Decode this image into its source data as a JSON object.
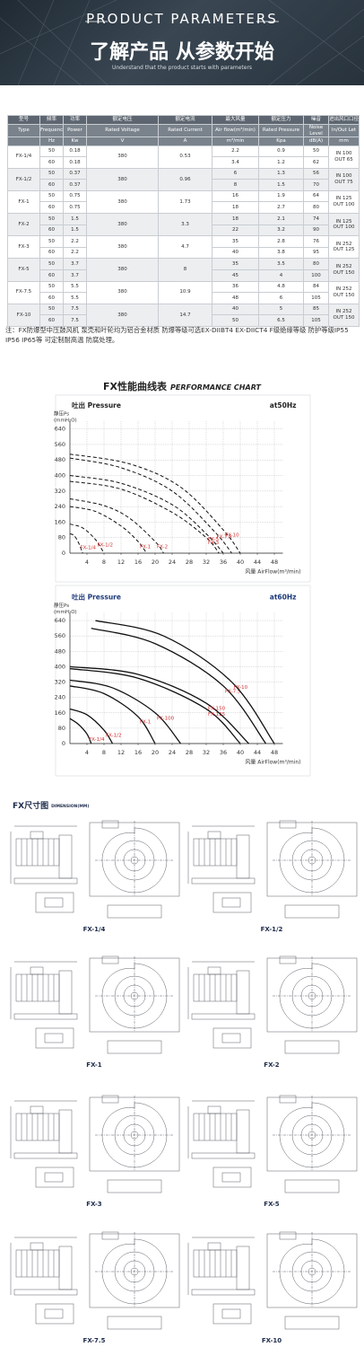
{
  "header": {
    "title": "PRODUCT PARAMETERS",
    "heading": "了解产品 从参数开始",
    "subtitle": "Understand that the product starts with parameters"
  },
  "table": {
    "header_cn": [
      "型号",
      "频率",
      "功率",
      "额定电压",
      "额定电流",
      "最大风量",
      "额定压力",
      "噪音",
      "进出风口口径"
    ],
    "header_en": [
      "Type",
      "Frequency",
      "Power",
      "Rated Voltage",
      "Rated Current",
      "Air flow(m³/min)",
      "Rated Pressure",
      "Noise Level",
      "In/Out Let"
    ],
    "units": [
      "Hz",
      "Kw",
      "V",
      "A",
      "m³/min",
      "Kpa",
      "dB(A)",
      "mm"
    ],
    "models": [
      {
        "type": "FX-1/4",
        "voltage": 380,
        "current": 0.53,
        "inlet": "IN 100",
        "outlet": "OUT 65",
        "rows": [
          [
            50,
            0.18,
            2.2,
            0.9,
            50
          ],
          [
            60,
            0.18,
            3.4,
            1.2,
            62
          ]
        ]
      },
      {
        "type": "FX-1/2",
        "voltage": 380,
        "current": 0.96,
        "inlet": "IN 100",
        "outlet": "OUT 75",
        "rows": [
          [
            50,
            0.37,
            6,
            1.3,
            56
          ],
          [
            60,
            0.37,
            8,
            1.5,
            70
          ]
        ]
      },
      {
        "type": "FX-1",
        "voltage": 380,
        "current": 1.73,
        "inlet": "IN 125",
        "outlet": "OUT 100",
        "rows": [
          [
            50,
            0.75,
            16,
            1.9,
            64
          ],
          [
            60,
            0.75,
            18,
            2.7,
            80
          ]
        ]
      },
      {
        "type": "FX-2",
        "voltage": 380,
        "current": 3.3,
        "inlet": "IN 125",
        "outlet": "OUT 100",
        "rows": [
          [
            50,
            1.5,
            18,
            2.1,
            74
          ],
          [
            60,
            1.5,
            22,
            3.2,
            90
          ]
        ]
      },
      {
        "type": "FX-3",
        "voltage": 380,
        "current": 4.7,
        "inlet": "IN 252",
        "outlet": "OUT 125",
        "rows": [
          [
            50,
            2.2,
            35,
            2.8,
            76
          ],
          [
            60,
            2.2,
            40,
            3.8,
            95
          ]
        ]
      },
      {
        "type": "FX-5",
        "voltage": 380,
        "current": 8,
        "inlet": "IN 252",
        "outlet": "OUT 150",
        "rows": [
          [
            50,
            3.7,
            35,
            3.5,
            80
          ],
          [
            60,
            3.7,
            45,
            4,
            100
          ]
        ]
      },
      {
        "type": "FX-7.5",
        "voltage": 380,
        "current": 10.9,
        "inlet": "IN 252",
        "outlet": "OUT 150",
        "rows": [
          [
            50,
            5.5,
            36,
            4.8,
            84
          ],
          [
            60,
            5.5,
            48,
            6,
            105
          ]
        ]
      },
      {
        "type": "FX-10",
        "voltage": 380,
        "current": 14.7,
        "inlet": "IN 252",
        "outlet": "OUT 150",
        "rows": [
          [
            50,
            7.5,
            40,
            5,
            85
          ],
          [
            60,
            7.5,
            50,
            6.5,
            105
          ]
        ]
      }
    ]
  },
  "note": "注：FX防爆型中压鼓风机 泵壳和叶轮均为铝合金材质 防爆等级可选EX-DIIBT4 EX-DIICT4 F级绝缘等级 防护等级IP55 IP56 IP65等 可定制耐高温 防腐处理。",
  "chart_section": {
    "title_cn": "FX性能曲线表",
    "title_en": "PERFORMANCE CHART"
  },
  "chart_data": [
    {
      "type": "line",
      "subtitle": "吐出 Pressure",
      "annotation": "at50Hz",
      "ylabel": "静压Ps",
      "yunit": "(mmH₂O)",
      "xlabel": "风量 AirFlow(m³/min)",
      "xlim": [
        0,
        50
      ],
      "ylim": [
        0,
        680
      ],
      "xticks": [
        4,
        8,
        12,
        16,
        20,
        24,
        28,
        32,
        36,
        40,
        44,
        48
      ],
      "yticks": [
        0,
        80,
        160,
        240,
        320,
        400,
        480,
        560,
        640
      ],
      "grid": true,
      "dashed": true,
      "label_color": "#d32f2f",
      "series": [
        {
          "name": "FX-1/4",
          "color": "#111111",
          "x": [
            0,
            1,
            2,
            3
          ],
          "values": [
            100,
            90,
            55,
            0
          ]
        },
        {
          "name": "FX-1/2",
          "color": "#111111",
          "x": [
            0,
            3,
            6,
            8
          ],
          "values": [
            150,
            130,
            70,
            0
          ]
        },
        {
          "name": "FX-1",
          "color": "#111111",
          "x": [
            0,
            6,
            12,
            16,
            18
          ],
          "values": [
            240,
            215,
            140,
            60,
            0
          ]
        },
        {
          "name": "FX-2",
          "color": "#111111",
          "x": [
            0,
            8,
            14,
            20,
            22
          ],
          "values": [
            280,
            245,
            180,
            60,
            0
          ]
        },
        {
          "name": "FX-3",
          "color": "#111111",
          "x": [
            0,
            12,
            24,
            32,
            35
          ],
          "values": [
            370,
            330,
            210,
            80,
            0
          ]
        },
        {
          "name": "FX-5",
          "color": "#111111",
          "x": [
            0,
            12,
            24,
            32,
            36
          ],
          "values": [
            400,
            360,
            250,
            100,
            0
          ]
        },
        {
          "name": "FX-7.5",
          "color": "#111111",
          "x": [
            0,
            12,
            24,
            34,
            38
          ],
          "values": [
            490,
            440,
            320,
            110,
            0
          ]
        },
        {
          "name": "FX-10",
          "color": "#111111",
          "x": [
            0,
            14,
            26,
            36,
            40
          ],
          "values": [
            510,
            460,
            340,
            120,
            0
          ]
        }
      ]
    },
    {
      "type": "line",
      "subtitle": "吐出 Pressure",
      "annotation": "at60Hz",
      "ylabel": "静压Ps",
      "yunit": "(mmH₂O)",
      "xlabel": "风量 AirFlow(m³/min)",
      "xlim": [
        0,
        50
      ],
      "ylim": [
        0,
        680
      ],
      "xticks": [
        4,
        8,
        12,
        16,
        20,
        24,
        28,
        32,
        36,
        40,
        44,
        48
      ],
      "yticks": [
        0,
        80,
        160,
        240,
        320,
        400,
        480,
        560,
        640
      ],
      "grid": true,
      "dashed": false,
      "label_color": "#d32f2f",
      "series": [
        {
          "name": "FX-1/4",
          "color": "#111111",
          "x": [
            0,
            2,
            4,
            5
          ],
          "values": [
            130,
            100,
            50,
            0
          ]
        },
        {
          "name": "FX-1/2",
          "color": "#111111",
          "x": [
            0,
            4,
            8,
            10
          ],
          "values": [
            180,
            150,
            70,
            0
          ]
        },
        {
          "name": "FX-1",
          "color": "#111111",
          "x": [
            0,
            8,
            16,
            20
          ],
          "values": [
            300,
            260,
            140,
            0
          ]
        },
        {
          "name": "FX-100",
          "color": "#111111",
          "x": [
            0,
            10,
            20,
            26
          ],
          "values": [
            330,
            290,
            160,
            0
          ]
        },
        {
          "name": "FX-125",
          "color": "#111111",
          "x": [
            0,
            16,
            32,
            40
          ],
          "values": [
            390,
            340,
            180,
            0
          ]
        },
        {
          "name": "FX-150",
          "color": "#111111",
          "x": [
            0,
            16,
            32,
            42
          ],
          "values": [
            400,
            360,
            210,
            0
          ]
        },
        {
          "name": "FX-7.5",
          "color": "#111111",
          "x": [
            5,
            20,
            36,
            46
          ],
          "values": [
            600,
            520,
            300,
            0
          ]
        },
        {
          "name": "FX-10",
          "color": "#111111",
          "x": [
            6,
            22,
            38,
            48
          ],
          "values": [
            640,
            560,
            320,
            0
          ]
        }
      ]
    }
  ],
  "dimensions": {
    "title_cn": "FX尺寸图",
    "title_en": "DIMENSION(MM)",
    "drawings": [
      "FX-1/4",
      "FX-1/2",
      "FX-1",
      "FX-2",
      "FX-3",
      "FX-5",
      "FX-7.5",
      "FX-10"
    ]
  }
}
